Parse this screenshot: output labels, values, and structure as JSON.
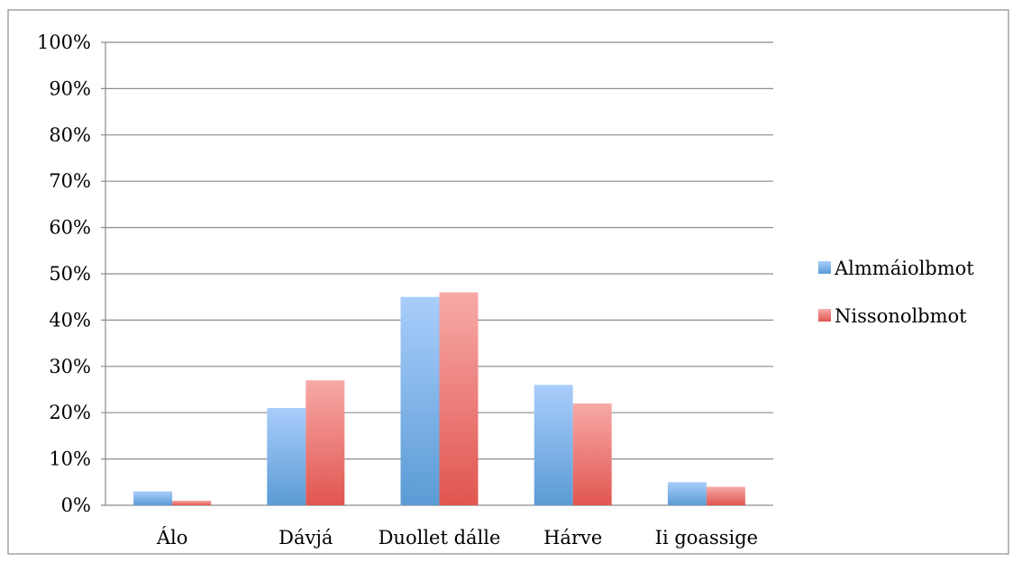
{
  "chart_data": {
    "type": "bar",
    "categories": [
      "Álo",
      "Dávjá",
      "Duollet dálle",
      "Hárve",
      "Ii goassige"
    ],
    "series": [
      {
        "name": "Almmáiolbmot",
        "values": [
          3,
          21,
          45,
          26,
          5
        ],
        "color": "#5b9bd5",
        "color_light": "#a9cdfb"
      },
      {
        "name": "Nissonolbmot",
        "values": [
          1,
          27,
          46,
          22,
          4
        ],
        "color": "#e15550",
        "color_light": "#f7aaa7"
      }
    ],
    "yticks": [
      "0%",
      "10%",
      "20%",
      "30%",
      "40%",
      "50%",
      "60%",
      "70%",
      "80%",
      "90%",
      "100%"
    ],
    "ylim": [
      0,
      100
    ],
    "grid": true,
    "legend": "right",
    "title": "",
    "xlabel": "",
    "ylabel": ""
  }
}
